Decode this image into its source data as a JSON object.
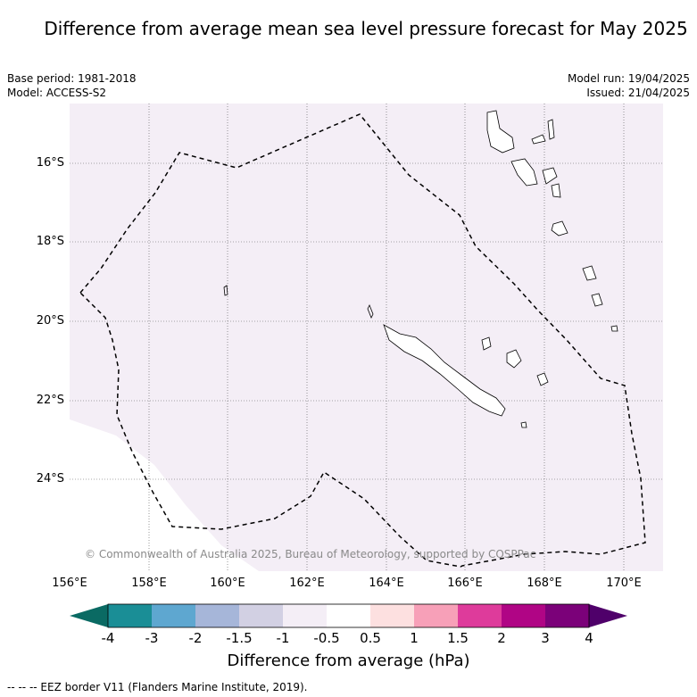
{
  "title": "Difference from average mean sea level pressure forecast for May 2025",
  "meta_left": [
    "Base period: 1981-2018",
    "Model: ACCESS-S2"
  ],
  "meta_right": [
    "Model run: 19/04/2025",
    "Issued: 21/04/2025"
  ],
  "lat_labels": [
    "16°S",
    "18°S",
    "20°S",
    "22°S",
    "24°S"
  ],
  "lon_labels": [
    "156°E",
    "158°E",
    "160°E",
    "162°E",
    "164°E",
    "166°E",
    "168°E",
    "170°E"
  ],
  "copyright": "© Commonwealth of Australia 2025, Bureau of Meteorology, supported by COSPPac",
  "colorbar": {
    "ticks": [
      "-4",
      "-3",
      "-2",
      "-1.5",
      "-1",
      "-0.5",
      "0.5",
      "1",
      "1.5",
      "2",
      "3",
      "4"
    ],
    "colors": [
      "#1a8e96",
      "#5ea7d0",
      "#a6b6d9",
      "#d2d0e3",
      "#f4eef6",
      "#ffffff",
      "#fde0e0",
      "#f7a0b8",
      "#de3b9b",
      "#b00585",
      "#7b0179"
    ],
    "under_color": "#0a6a63",
    "over_color": "#4f006a",
    "title": "Difference from average (hPa)"
  },
  "map_fill_color": "#f4eef6",
  "legend_text": "-- -- -- EEZ border V11 (Flanders Marine Institute, 2019)."
}
